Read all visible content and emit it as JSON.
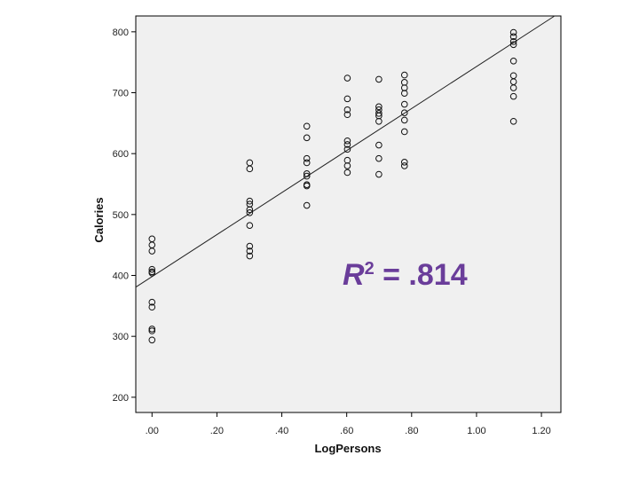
{
  "chart_data": {
    "type": "scatter",
    "title": "",
    "xlabel": "LogPersons",
    "ylabel": "Calories",
    "xlim": [
      -0.05,
      1.26
    ],
    "ylim": [
      175,
      826
    ],
    "x_ticks": [
      0.0,
      0.2,
      0.4,
      0.6,
      0.8,
      1.0,
      1.2
    ],
    "x_tick_labels": [
      ".00",
      ".20",
      ".40",
      ".60",
      ".80",
      "1.00",
      "1.20"
    ],
    "y_ticks": [
      200,
      300,
      400,
      500,
      600,
      700,
      800
    ],
    "y_tick_labels": [
      "200",
      "300",
      "400",
      "500",
      "600",
      "700",
      "800"
    ],
    "grid": false,
    "points": [
      [
        0.0,
        460
      ],
      [
        0.0,
        450
      ],
      [
        0.0,
        440
      ],
      [
        0.0,
        410
      ],
      [
        0.0,
        406
      ],
      [
        0.0,
        404
      ],
      [
        0.0,
        356
      ],
      [
        0.0,
        348
      ],
      [
        0.0,
        312
      ],
      [
        0.0,
        309
      ],
      [
        0.0,
        294
      ],
      [
        0.301,
        585
      ],
      [
        0.301,
        575
      ],
      [
        0.301,
        522
      ],
      [
        0.301,
        517
      ],
      [
        0.301,
        508
      ],
      [
        0.301,
        503
      ],
      [
        0.301,
        482
      ],
      [
        0.301,
        448
      ],
      [
        0.301,
        440
      ],
      [
        0.301,
        432
      ],
      [
        0.477,
        645
      ],
      [
        0.477,
        626
      ],
      [
        0.477,
        592
      ],
      [
        0.477,
        585
      ],
      [
        0.477,
        567
      ],
      [
        0.477,
        563
      ],
      [
        0.477,
        549
      ],
      [
        0.477,
        547
      ],
      [
        0.477,
        515
      ],
      [
        0.602,
        724
      ],
      [
        0.602,
        690
      ],
      [
        0.602,
        672
      ],
      [
        0.602,
        664
      ],
      [
        0.602,
        621
      ],
      [
        0.602,
        615
      ],
      [
        0.602,
        607
      ],
      [
        0.602,
        589
      ],
      [
        0.602,
        580
      ],
      [
        0.602,
        569
      ],
      [
        0.699,
        722
      ],
      [
        0.699,
        677
      ],
      [
        0.699,
        672
      ],
      [
        0.699,
        666
      ],
      [
        0.699,
        662
      ],
      [
        0.699,
        653
      ],
      [
        0.699,
        614
      ],
      [
        0.699,
        592
      ],
      [
        0.699,
        566
      ],
      [
        0.778,
        729
      ],
      [
        0.778,
        717
      ],
      [
        0.778,
        708
      ],
      [
        0.778,
        699
      ],
      [
        0.778,
        681
      ],
      [
        0.778,
        667
      ],
      [
        0.778,
        655
      ],
      [
        0.778,
        636
      ],
      [
        0.778,
        586
      ],
      [
        0.778,
        580
      ],
      [
        1.114,
        799
      ],
      [
        1.114,
        792
      ],
      [
        1.114,
        784
      ],
      [
        1.114,
        779
      ],
      [
        1.114,
        752
      ],
      [
        1.114,
        728
      ],
      [
        1.114,
        718
      ],
      [
        1.114,
        708
      ],
      [
        1.114,
        694
      ],
      [
        1.114,
        653
      ]
    ],
    "fit_line": {
      "intercept": 398,
      "slope": 345
    },
    "annotation": {
      "r_letter": "R",
      "r_superscript": "2",
      "r_value": " = .814"
    }
  }
}
